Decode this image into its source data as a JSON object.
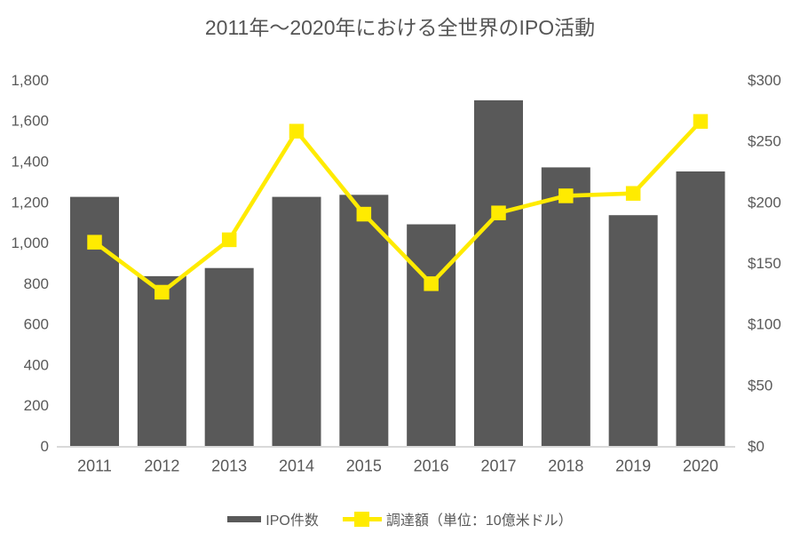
{
  "page": {
    "background": "#ffffff"
  },
  "chart_data": {
    "type": "combo",
    "title": "2011年〜2020年における全世界のIPO活動",
    "categories": [
      "2011",
      "2012",
      "2013",
      "2014",
      "2015",
      "2016",
      "2017",
      "2018",
      "2019",
      "2020"
    ],
    "series": [
      {
        "name": "IPO件数",
        "type": "bar",
        "axis": "left",
        "color": "#595959",
        "values": [
          1225,
          835,
          875,
          1225,
          1235,
          1090,
          1700,
          1370,
          1135,
          1350
        ]
      },
      {
        "name": "調達額（単位：10億米ドル）",
        "type": "line",
        "axis": "right",
        "color": "#ffeb00",
        "marker": "square",
        "values": [
          167,
          126,
          169,
          258,
          190,
          133,
          191,
          205,
          207,
          266
        ]
      }
    ],
    "left_axis": {
      "min": 0,
      "max": 1800,
      "step": 200,
      "tick_labels": [
        "0",
        "200",
        "400",
        "600",
        "800",
        "1,000",
        "1,200",
        "1,400",
        "1,600",
        "1,800"
      ]
    },
    "right_axis": {
      "min": 0,
      "max": 300,
      "step": 50,
      "tick_labels": [
        "$0",
        "$50",
        "$100",
        "$150",
        "$200",
        "$250",
        "$300"
      ]
    },
    "legend_position": "bottom",
    "grid": "off",
    "text_color": "#595959",
    "axis_line_color": "#d9d9d9"
  }
}
